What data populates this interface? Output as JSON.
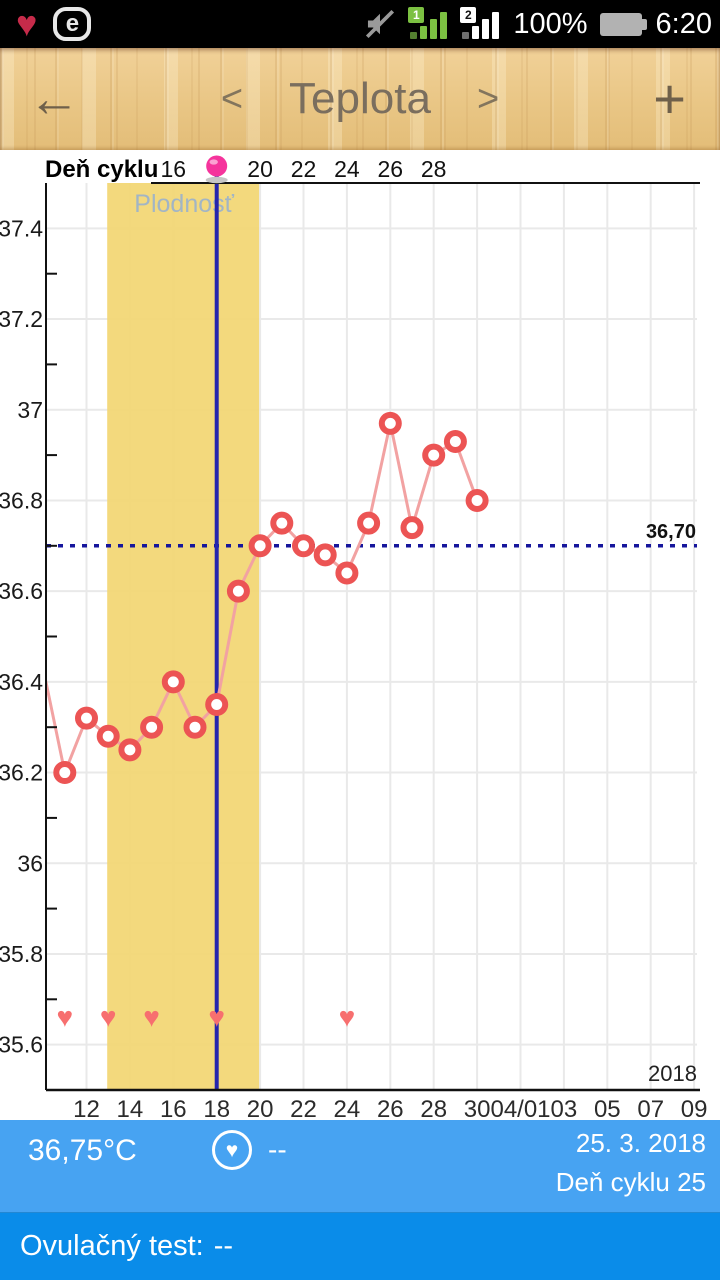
{
  "status_bar": {
    "time": "6:20",
    "battery_label": "100%",
    "sim1_badge": "1",
    "sim2_badge": "2",
    "heart_glyph": "♥",
    "eset_glyph": "e"
  },
  "header": {
    "title": "Teplota",
    "back_icon": "←",
    "prev_icon": "<",
    "next_icon": ">",
    "add_icon": "+"
  },
  "chart_data": {
    "type": "line",
    "title": "Teplota",
    "top_axis_label": "Deň cyklu",
    "top_axis_ticks": [
      {
        "day": 16,
        "text": "16"
      },
      {
        "day": 20,
        "text": "20"
      },
      {
        "day": 22,
        "text": "22"
      },
      {
        "day": 24,
        "text": "24"
      },
      {
        "day": 26,
        "text": "26"
      },
      {
        "day": 28,
        "text": "28"
      }
    ],
    "ovulation_marker_day": 18,
    "ovulation_line_day": 18,
    "x_ticks": [
      {
        "day": 12,
        "text": "12"
      },
      {
        "day": 14,
        "text": "14"
      },
      {
        "day": 16,
        "text": "16"
      },
      {
        "day": 18,
        "text": "18"
      },
      {
        "day": 20,
        "text": "20"
      },
      {
        "day": 22,
        "text": "22"
      },
      {
        "day": 24,
        "text": "24"
      },
      {
        "day": 26,
        "text": "26"
      },
      {
        "day": 28,
        "text": "28"
      },
      {
        "day": 30,
        "text": "30"
      },
      {
        "day": 32,
        "text": "04/01"
      },
      {
        "day": 34,
        "text": "03"
      },
      {
        "day": 36,
        "text": "05"
      },
      {
        "day": 38,
        "text": "07"
      },
      {
        "day": 40,
        "text": "09"
      }
    ],
    "y_ticks": [
      {
        "value": 37.4,
        "text": "37.4"
      },
      {
        "value": 37.2,
        "text": "37.2"
      },
      {
        "value": 37.0,
        "text": "37"
      },
      {
        "value": 36.8,
        "text": "36.8"
      },
      {
        "value": 36.6,
        "text": "36.6"
      },
      {
        "value": 36.4,
        "text": "36.4"
      },
      {
        "value": 36.2,
        "text": "36.2"
      },
      {
        "value": 36.0,
        "text": "36"
      },
      {
        "value": 35.8,
        "text": "35.8"
      },
      {
        "value": 35.6,
        "text": "35.6"
      }
    ],
    "y_minor_ticks": [
      37.3,
      37.1,
      36.9,
      36.7,
      36.5,
      36.3,
      36.1,
      35.9,
      35.7
    ],
    "ylim": [
      35.5,
      37.5
    ],
    "grid": true,
    "series": [
      {
        "name": "Teplota",
        "points": [
          {
            "day": 10,
            "temp": 36.43,
            "marker": false
          },
          {
            "day": 11,
            "temp": 36.2
          },
          {
            "day": 12,
            "temp": 36.32
          },
          {
            "day": 13,
            "temp": 36.28
          },
          {
            "day": 14,
            "temp": 36.25
          },
          {
            "day": 15,
            "temp": 36.3
          },
          {
            "day": 16,
            "temp": 36.4
          },
          {
            "day": 17,
            "temp": 36.3
          },
          {
            "day": 18,
            "temp": 36.35
          },
          {
            "day": 19,
            "temp": 36.6
          },
          {
            "day": 20,
            "temp": 36.7
          },
          {
            "day": 21,
            "temp": 36.75
          },
          {
            "day": 22,
            "temp": 36.7
          },
          {
            "day": 23,
            "temp": 36.68
          },
          {
            "day": 24,
            "temp": 36.64
          },
          {
            "day": 25,
            "temp": 36.75
          },
          {
            "day": 26,
            "temp": 36.97
          },
          {
            "day": 27,
            "temp": 36.74
          },
          {
            "day": 28,
            "temp": 36.9
          },
          {
            "day": 29,
            "temp": 36.93
          },
          {
            "day": 30,
            "temp": 36.8
          }
        ]
      }
    ],
    "coverline": {
      "value": 36.7,
      "label": "36,70"
    },
    "fertility_band": {
      "start_day": 13,
      "end_day": 20,
      "label": "Plodnosť"
    },
    "intercourse_heart_days": [
      11,
      13,
      15,
      18,
      24
    ],
    "intercourse_row_temp": 35.66,
    "year_label": "2018",
    "colors": {
      "band": "#f2d672",
      "line": "#f2a2a2",
      "marker": "#ec5454",
      "heart": "#f76f6f",
      "coverline": "#16169c",
      "ovulation_line": "#2525ad",
      "ovulation_dot": "#f5349c",
      "plodnost_text": "#a2b5c5",
      "grid": "#e9e9e9",
      "axis": "#111111"
    }
  },
  "footer": {
    "temperature": "36,75°C",
    "heart_glyph": "♥",
    "intercourse_value": "--",
    "date": "25. 3. 2018",
    "cycle_day_label": "Deň cyklu 25",
    "ovulation_test_label": "Ovulačný test:",
    "ovulation_test_value": "--",
    "top_bg": "#47a3f2",
    "bottom_bg": "#0a8ce9"
  }
}
